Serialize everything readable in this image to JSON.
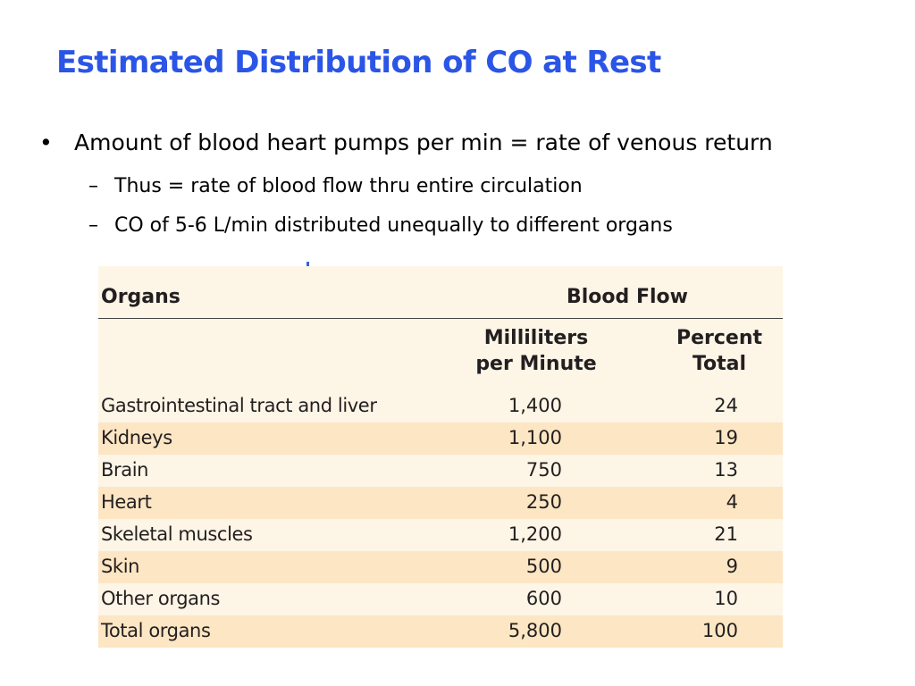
{
  "slide": {
    "title": "Estimated Distribution of CO at Rest",
    "bullets": [
      {
        "marker": "•",
        "text": "Amount of blood heart pumps per min = rate of venous return",
        "subitems": [
          {
            "marker": "–",
            "text": "Thus = rate of blood flow thru entire circulation"
          },
          {
            "marker": "–",
            "text": "CO  of 5-6 L/min distributed unequally to different organs"
          }
        ]
      }
    ]
  },
  "table": {
    "header_organs": "Organs",
    "header_blood_flow": "Blood Flow",
    "subheader_ml_line1": "Milliliters",
    "subheader_ml_line2": "per Minute",
    "subheader_pct_line1": "Percent",
    "subheader_pct_line2": "Total",
    "rows": [
      {
        "organ": "Gastrointestinal tract and liver",
        "ml_per_min": "1,400",
        "percent": "24"
      },
      {
        "organ": "Kidneys",
        "ml_per_min": "1,100",
        "percent": "19"
      },
      {
        "organ": "Brain",
        "ml_per_min": "750",
        "percent": "13"
      },
      {
        "organ": "Heart",
        "ml_per_min": "250",
        "percent": "4"
      },
      {
        "organ": "Skeletal muscles",
        "ml_per_min": "1,200",
        "percent": "21"
      },
      {
        "organ": "Skin",
        "ml_per_min": "500",
        "percent": "9"
      },
      {
        "organ": "Other organs",
        "ml_per_min": "600",
        "percent": "10"
      },
      {
        "organ": "Total organs",
        "ml_per_min": "5,800",
        "percent": "100"
      }
    ]
  },
  "colors": {
    "title": "#2a55e6",
    "table_background": "#fdf5e6",
    "table_row_stripe": "#fde6c4"
  }
}
